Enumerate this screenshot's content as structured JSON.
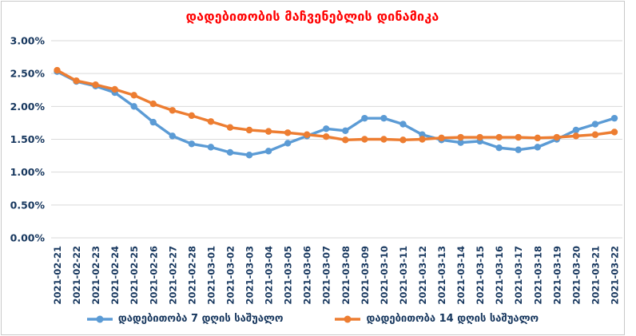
{
  "title": "დადებითობის მაჩვენებლის დინამიკა",
  "colors": {
    "title": "#ff0000",
    "axis_text": "#17375e",
    "gridline": "#d9d9d9",
    "border": "#c9c9c9",
    "series_blue": "#5b9bd5",
    "series_orange": "#ed7d31"
  },
  "legend": {
    "items": [
      {
        "label": "დადებითობა 7 დღის საშუალო",
        "color": "#5b9bd5"
      },
      {
        "label": "დადებითობა 14 დღის საშუალო",
        "color": "#ed7d31"
      }
    ]
  },
  "chart_data": {
    "type": "line",
    "title": "დადებითობის მაჩვენებლის დინამიკა",
    "xlabel": "",
    "ylabel": "",
    "ylim": [
      0,
      3
    ],
    "ytick_step": 0.5,
    "ytick_labels": [
      "0.00%",
      "0.50%",
      "1.00%",
      "1.50%",
      "2.00%",
      "2.50%",
      "3.00%"
    ],
    "grid": true,
    "legend_position": "bottom",
    "x": [
      "2021-02-21",
      "2021-02-22",
      "2021-02-23",
      "2021-02-24",
      "2021-02-25",
      "2021-02-26",
      "2021-02-27",
      "2021-02-28",
      "2021-03-01",
      "2021-03-02",
      "2021-03-03",
      "2021-03-04",
      "2021-03-05",
      "2021-03-06",
      "2021-03-07",
      "2021-03-08",
      "2021-03-09",
      "2021-03-10",
      "2021-03-11",
      "2021-03-12",
      "2021-03-13",
      "2021-03-14",
      "2021-03-15",
      "2021-03-16",
      "2021-03-17",
      "2021-03-18",
      "2021-03-19",
      "2021-03-20",
      "2021-03-21",
      "2021-03-22"
    ],
    "series": [
      {
        "name": "დადებითობა 7 დღის საშუალო",
        "color": "#5b9bd5",
        "unit": "%",
        "values": [
          2.53,
          2.38,
          2.31,
          2.21,
          2.0,
          1.76,
          1.55,
          1.43,
          1.38,
          1.3,
          1.26,
          1.32,
          1.44,
          1.55,
          1.66,
          1.63,
          1.82,
          1.82,
          1.73,
          1.57,
          1.49,
          1.45,
          1.47,
          1.37,
          1.34,
          1.38,
          1.5,
          1.64,
          1.73,
          1.82
        ]
      },
      {
        "name": "დადებითობა 14 დღის საშუალო",
        "color": "#ed7d31",
        "unit": "%",
        "values": [
          2.55,
          2.39,
          2.33,
          2.26,
          2.17,
          2.04,
          1.94,
          1.86,
          1.77,
          1.68,
          1.64,
          1.62,
          1.6,
          1.57,
          1.54,
          1.49,
          1.5,
          1.5,
          1.49,
          1.5,
          1.52,
          1.53,
          1.53,
          1.53,
          1.53,
          1.52,
          1.53,
          1.55,
          1.57,
          1.61
        ]
      }
    ]
  }
}
